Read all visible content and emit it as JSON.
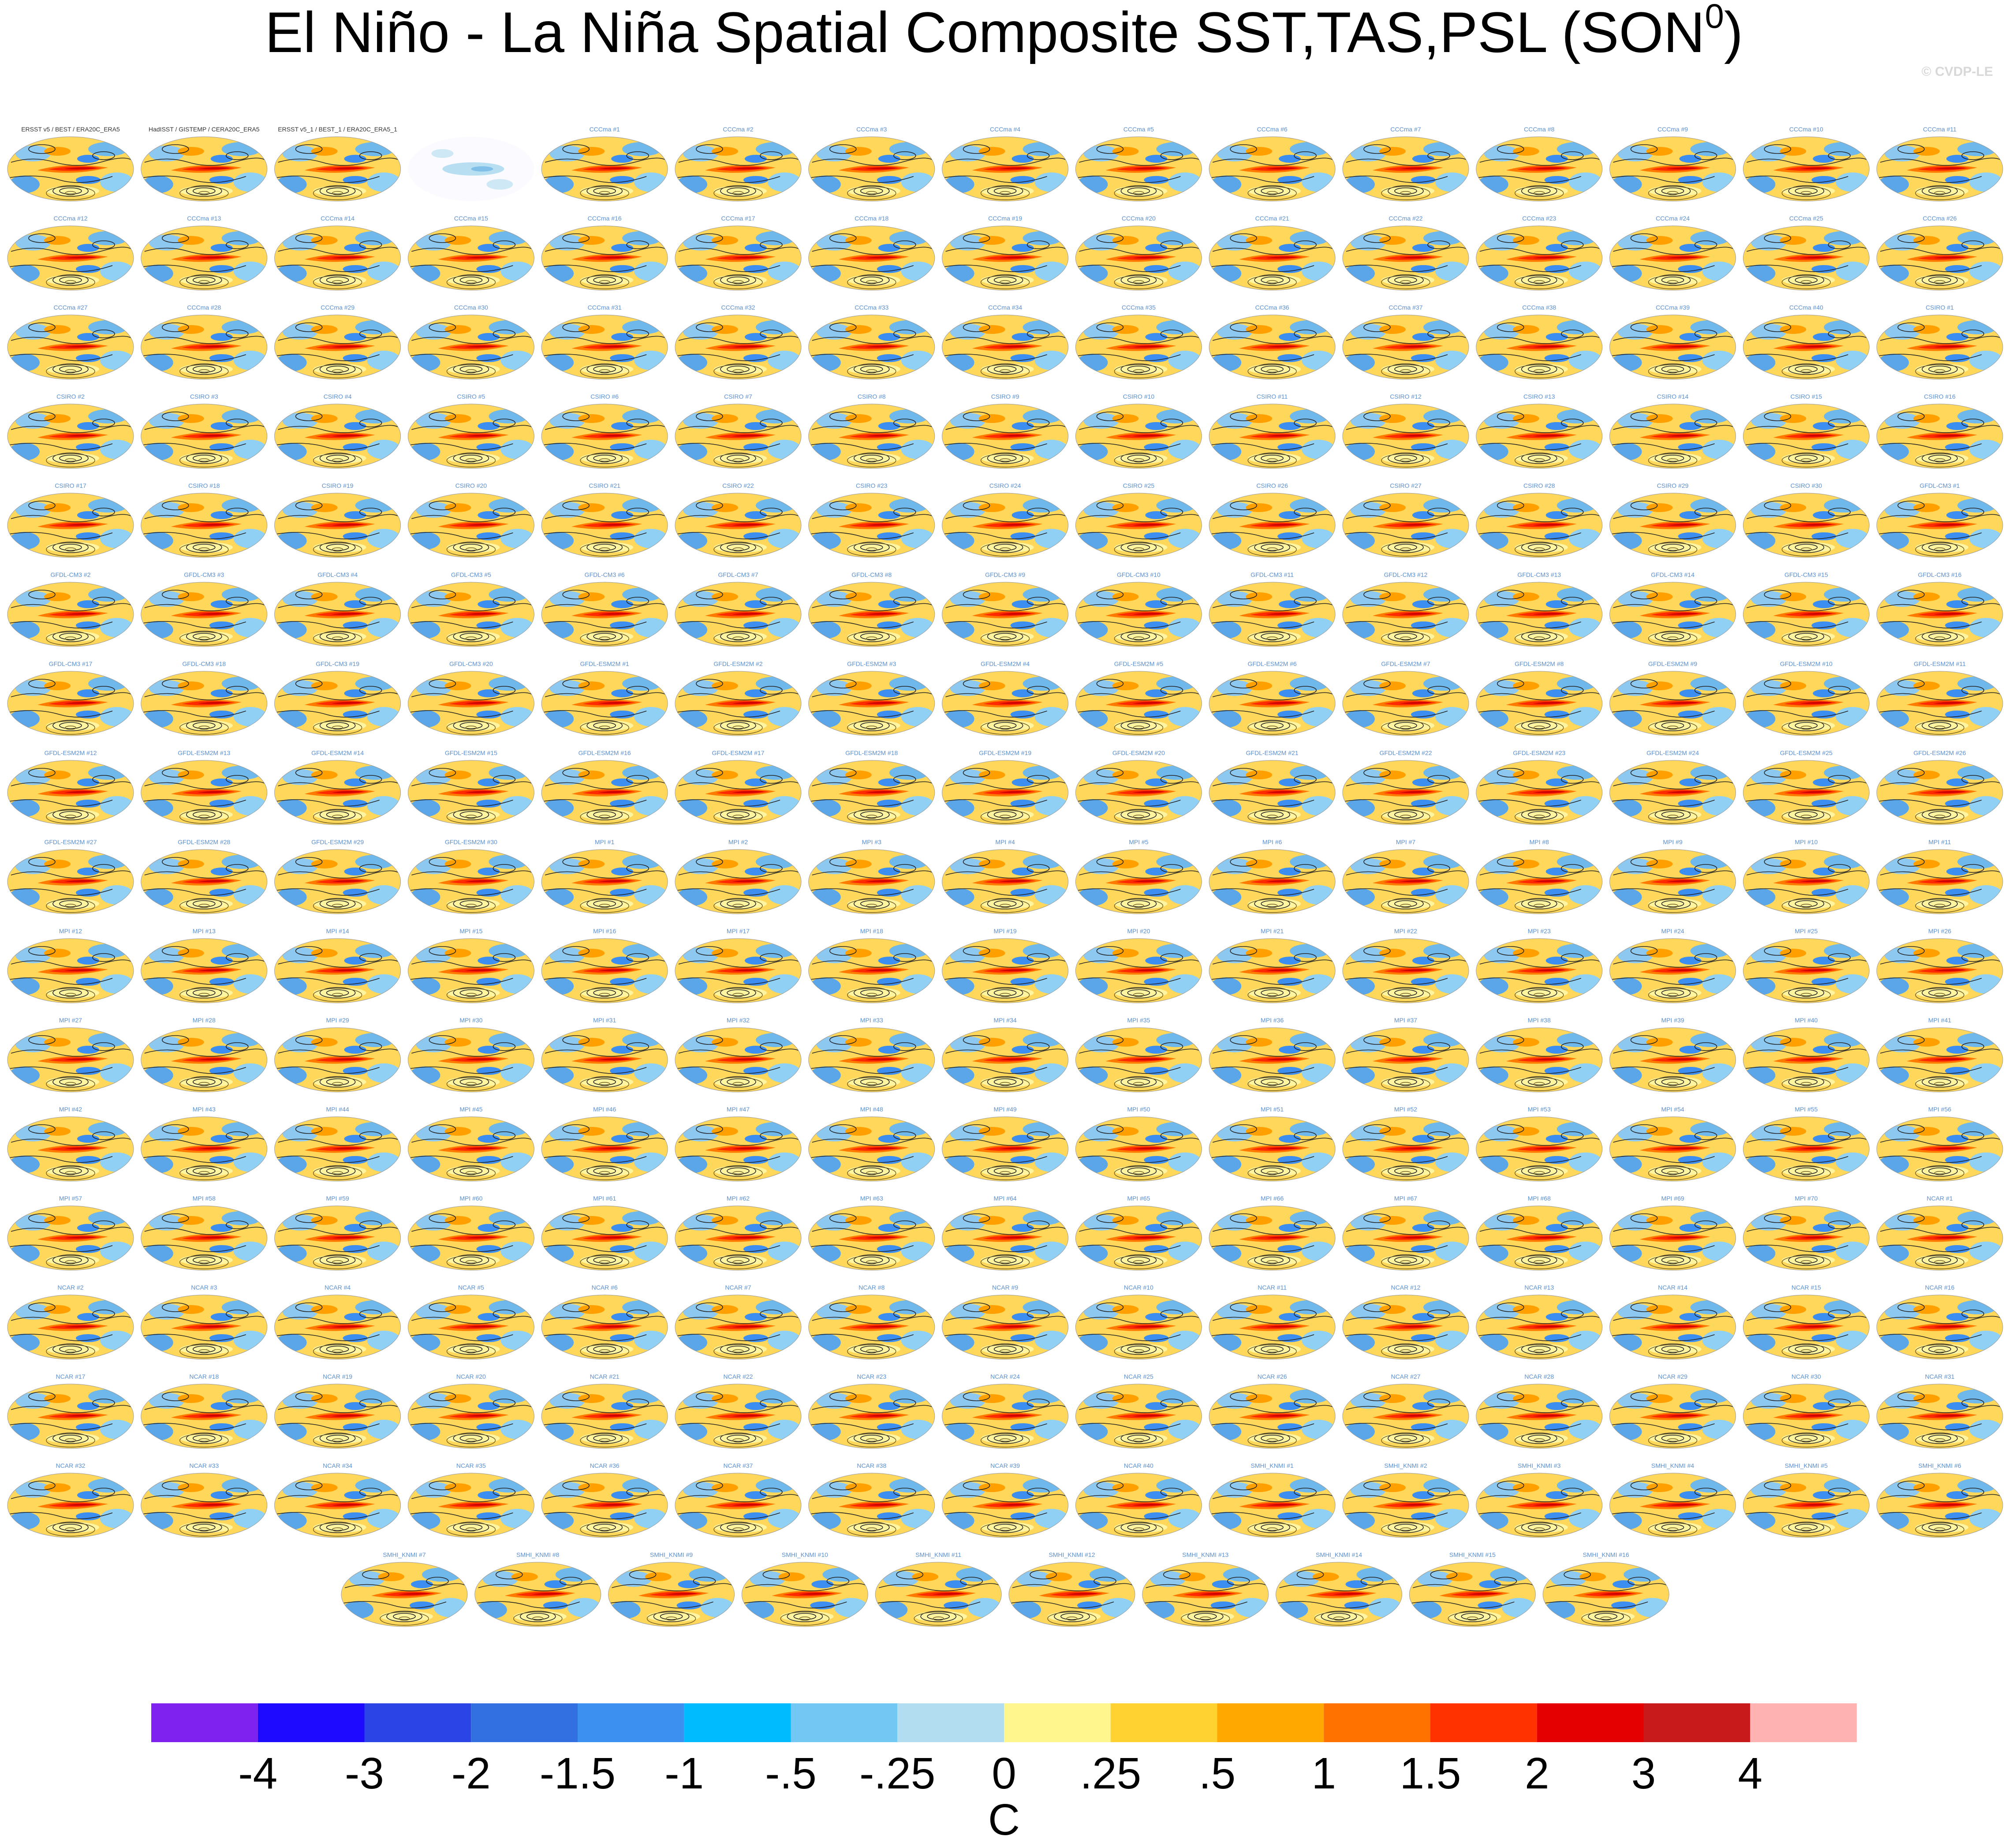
{
  "title": "El Niño - La Niña Spatial Composite SST,TAS,PSL (SON",
  "title_superscript": "0",
  "title_end": ")",
  "watermark": "© CVDP-LE",
  "panels": [
    "ERSST v5 / BEST / ERA20C_ERA5",
    "HadISST / GISTEMP / CERA20C_ERA5",
    "ERSST v5_1 / BEST_1 / ERA20C_ERA5_1",
    null,
    "CCCma #1",
    "CCCma #2",
    "CCCma #3",
    "CCCma #4",
    "CCCma #5",
    "CCCma #6",
    "CCCma #7",
    "CCCma #8",
    "CCCma #9",
    "CCCma #10",
    "CCCma #11",
    "CCCma #12",
    "CCCma #13",
    "CCCma #14",
    "CCCma #15",
    "CCCma #16",
    "CCCma #17",
    "CCCma #18",
    "CCCma #19",
    "CCCma #20",
    "CCCma #21",
    "CCCma #22",
    "CCCma #23",
    "CCCma #24",
    "CCCma #25",
    "CCCma #26",
    "CCCma #27",
    "CCCma #28",
    "CCCma #29",
    "CCCma #30",
    "CCCma #31",
    "CCCma #32",
    "CCCma #33",
    "CCCma #34",
    "CCCma #35",
    "CCCma #36",
    "CCCma #37",
    "CCCma #38",
    "CCCma #39",
    "CCCma #40",
    "CSIRO #1",
    "CSIRO #2",
    "CSIRO #3",
    "CSIRO #4",
    "CSIRO #5",
    "CSIRO #6",
    "CSIRO #7",
    "CSIRO #8",
    "CSIRO #9",
    "CSIRO #10",
    "CSIRO #11",
    "CSIRO #12",
    "CSIRO #13",
    "CSIRO #14",
    "CSIRO #15",
    "CSIRO #16",
    "CSIRO #17",
    "CSIRO #18",
    "CSIRO #19",
    "CSIRO #20",
    "CSIRO #21",
    "CSIRO #22",
    "CSIRO #23",
    "CSIRO #24",
    "CSIRO #25",
    "CSIRO #26",
    "CSIRO #27",
    "CSIRO #28",
    "CSIRO #29",
    "CSIRO #30",
    "GFDL-CM3 #1",
    "GFDL-CM3 #2",
    "GFDL-CM3 #3",
    "GFDL-CM3 #4",
    "GFDL-CM3 #5",
    "GFDL-CM3 #6",
    "GFDL-CM3 #7",
    "GFDL-CM3 #8",
    "GFDL-CM3 #9",
    "GFDL-CM3 #10",
    "GFDL-CM3 #11",
    "GFDL-CM3 #12",
    "GFDL-CM3 #13",
    "GFDL-CM3 #14",
    "GFDL-CM3 #15",
    "GFDL-CM3 #16",
    "GFDL-CM3 #17",
    "GFDL-CM3 #18",
    "GFDL-CM3 #19",
    "GFDL-CM3 #20",
    "GFDL-ESM2M #1",
    "GFDL-ESM2M #2",
    "GFDL-ESM2M #3",
    "GFDL-ESM2M #4",
    "GFDL-ESM2M #5",
    "GFDL-ESM2M #6",
    "GFDL-ESM2M #7",
    "GFDL-ESM2M #8",
    "GFDL-ESM2M #9",
    "GFDL-ESM2M #10",
    "GFDL-ESM2M #11",
    "GFDL-ESM2M #12",
    "GFDL-ESM2M #13",
    "GFDL-ESM2M #14",
    "GFDL-ESM2M #15",
    "GFDL-ESM2M #16",
    "GFDL-ESM2M #17",
    "GFDL-ESM2M #18",
    "GFDL-ESM2M #19",
    "GFDL-ESM2M #20",
    "GFDL-ESM2M #21",
    "GFDL-ESM2M #22",
    "GFDL-ESM2M #23",
    "GFDL-ESM2M #24",
    "GFDL-ESM2M #25",
    "GFDL-ESM2M #26",
    "GFDL-ESM2M #27",
    "GFDL-ESM2M #28",
    "GFDL-ESM2M #29",
    "GFDL-ESM2M #30",
    "MPI #1",
    "MPI #2",
    "MPI #3",
    "MPI #4",
    "MPI #5",
    "MPI #6",
    "MPI #7",
    "MPI #8",
    "MPI #9",
    "MPI #10",
    "MPI #11",
    "MPI #12",
    "MPI #13",
    "MPI #14",
    "MPI #15",
    "MPI #16",
    "MPI #17",
    "MPI #18",
    "MPI #19",
    "MPI #20",
    "MPI #21",
    "MPI #22",
    "MPI #23",
    "MPI #24",
    "MPI #25",
    "MPI #26",
    "MPI #27",
    "MPI #28",
    "MPI #29",
    "MPI #30",
    "MPI #31",
    "MPI #32",
    "MPI #33",
    "MPI #34",
    "MPI #35",
    "MPI #36",
    "MPI #37",
    "MPI #38",
    "MPI #39",
    "MPI #40",
    "MPI #41",
    "MPI #42",
    "MPI #43",
    "MPI #44",
    "MPI #45",
    "MPI #46",
    "MPI #47",
    "MPI #48",
    "MPI #49",
    "MPI #50",
    "MPI #51",
    "MPI #52",
    "MPI #53",
    "MPI #54",
    "MPI #55",
    "MPI #56",
    "MPI #57",
    "MPI #58",
    "MPI #59",
    "MPI #60",
    "MPI #61",
    "MPI #62",
    "MPI #63",
    "MPI #64",
    "MPI #65",
    "MPI #66",
    "MPI #67",
    "MPI #68",
    "MPI #69",
    "MPI #70",
    "NCAR #1",
    "NCAR #2",
    "NCAR #3",
    "NCAR #4",
    "NCAR #5",
    "NCAR #6",
    "NCAR #7",
    "NCAR #8",
    "NCAR #9",
    "NCAR #10",
    "NCAR #11",
    "NCAR #12",
    "NCAR #13",
    "NCAR #14",
    "NCAR #15",
    "NCAR #16",
    "NCAR #17",
    "NCAR #18",
    "NCAR #19",
    "NCAR #20",
    "NCAR #21",
    "NCAR #22",
    "NCAR #23",
    "NCAR #24",
    "NCAR #25",
    "NCAR #26",
    "NCAR #27",
    "NCAR #28",
    "NCAR #29",
    "NCAR #30",
    "NCAR #31",
    "NCAR #32",
    "NCAR #33",
    "NCAR #34",
    "NCAR #35",
    "NCAR #36",
    "NCAR #37",
    "NCAR #38",
    "NCAR #39",
    "NCAR #40",
    "SMHI_KNMI #1",
    "SMHI_KNMI #2",
    "SMHI_KNMI #3",
    "SMHI_KNMI #4",
    "SMHI_KNMI #5",
    "SMHI_KNMI #6",
    "SMHI_KNMI #7",
    "SMHI_KNMI #8",
    "SMHI_KNMI #9",
    "SMHI_KNMI #10",
    "SMHI_KNMI #11",
    "SMHI_KNMI #12",
    "SMHI_KNMI #13",
    "SMHI_KNMI #14",
    "SMHI_KNMI #15",
    "SMHI_KNMI #16"
  ],
  "colorbar": {
    "colors": [
      "#7f22ef",
      "#1e0aff",
      "#2a44e6",
      "#3270e2",
      "#3c90f0",
      "#00bcff",
      "#72c8f2",
      "#b2ddf0",
      "#fff68e",
      "#ffd232",
      "#ffa800",
      "#ff7200",
      "#ff3200",
      "#e40000",
      "#c81a1a",
      "#ffb2b2"
    ],
    "ticks": [
      -4,
      -3,
      -2,
      -1.5,
      -1,
      {
        "value": -0.5,
        "label": "-.5"
      },
      {
        "value": -0.25,
        "label": "-.25"
      },
      0,
      {
        "value": 0.25,
        "label": ".25"
      },
      {
        "value": 0.5,
        "label": ".5"
      },
      1,
      1.5,
      2,
      3,
      4
    ],
    "label": "C"
  }
}
